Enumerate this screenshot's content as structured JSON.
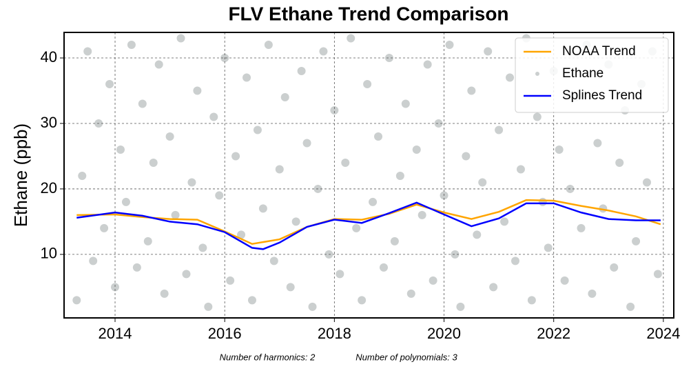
{
  "chart_data": {
    "type": "scatter",
    "title": "FLV Ethane Trend Comparison",
    "ylabel": "Ethane (ppb)",
    "notes": [
      "Number of harmonics: 2",
      "Number of polynomials: 3"
    ],
    "xlim": [
      2013.07,
      2024.19
    ],
    "xticks": [
      2014,
      2016,
      2018,
      2020,
      2022,
      2024
    ],
    "ylim": [
      0.3,
      43.9
    ],
    "yticks": [
      10,
      20,
      30,
      40
    ],
    "grid": true,
    "legend": "upper right",
    "series": [
      {
        "name": "NOAA Trend",
        "kind": "line",
        "color": "#ffa500",
        "x": [
          2013.3,
          2014,
          2014.5,
          2015,
          2015.5,
          2016,
          2016.5,
          2017,
          2017.5,
          2018,
          2018.5,
          2019,
          2019.5,
          2020,
          2020.5,
          2021,
          2021.5,
          2022,
          2022.5,
          2023,
          2023.5,
          2023.95
        ],
        "values": [
          16.0,
          16.1,
          15.7,
          15.4,
          15.3,
          13.5,
          11.6,
          12.3,
          14.2,
          15.4,
          15.3,
          16.2,
          17.6,
          16.4,
          15.4,
          16.5,
          18.3,
          18.2,
          17.4,
          16.7,
          15.8,
          14.6
        ]
      },
      {
        "name": "Ethane",
        "kind": "scatter",
        "color": "#cbcfcf",
        "x": [
          2013.3,
          2013.4,
          2013.5,
          2013.6,
          2013.7,
          2013.8,
          2013.9,
          2014.0,
          2014.1,
          2014.2,
          2014.3,
          2014.4,
          2014.5,
          2014.6,
          2014.7,
          2014.8,
          2014.9,
          2015.0,
          2015.1,
          2015.2,
          2015.3,
          2015.4,
          2015.5,
          2015.6,
          2015.7,
          2015.8,
          2015.9,
          2016.0,
          2016.1,
          2016.2,
          2016.3,
          2016.4,
          2016.5,
          2016.6,
          2016.7,
          2016.8,
          2016.9,
          2017.0,
          2017.1,
          2017.2,
          2017.3,
          2017.4,
          2017.5,
          2017.6,
          2017.7,
          2017.8,
          2017.9,
          2018.0,
          2018.1,
          2018.2,
          2018.3,
          2018.4,
          2018.5,
          2018.6,
          2018.7,
          2018.8,
          2018.9,
          2019.0,
          2019.1,
          2019.2,
          2019.3,
          2019.4,
          2019.5,
          2019.6,
          2019.7,
          2019.8,
          2019.9,
          2020.0,
          2020.1,
          2020.2,
          2020.3,
          2020.4,
          2020.5,
          2020.6,
          2020.7,
          2020.8,
          2020.9,
          2021.0,
          2021.1,
          2021.2,
          2021.3,
          2021.4,
          2021.5,
          2021.6,
          2021.7,
          2021.8,
          2021.9,
          2022.0,
          2022.1,
          2022.2,
          2022.3,
          2022.4,
          2022.5,
          2022.6,
          2022.7,
          2022.8,
          2022.9,
          2023.0,
          2023.1,
          2023.2,
          2023.3,
          2023.4,
          2023.5,
          2023.6,
          2023.7,
          2023.8,
          2023.9
        ],
        "values": [
          3,
          22,
          41,
          9,
          30,
          14,
          36,
          5,
          26,
          18,
          42,
          8,
          33,
          12,
          24,
          39,
          4,
          28,
          16,
          43,
          7,
          21,
          35,
          11,
          2,
          31,
          19,
          40,
          6,
          25,
          13,
          37,
          3,
          29,
          17,
          42,
          9,
          23,
          34,
          5,
          15,
          38,
          27,
          2,
          20,
          41,
          10,
          32,
          7,
          24,
          43,
          14,
          3,
          36,
          18,
          28,
          8,
          40,
          12,
          22,
          33,
          4,
          26,
          16,
          39,
          6,
          30,
          19,
          42,
          10,
          2,
          25,
          35,
          13,
          21,
          41,
          5,
          29,
          15,
          37,
          9,
          23,
          43,
          3,
          31,
          18,
          11,
          38,
          26,
          6,
          20,
          34,
          14,
          42,
          4,
          27,
          17,
          39,
          8,
          24,
          32,
          2,
          12,
          36,
          21,
          41,
          7
        ]
      },
      {
        "name": "Splines Trend",
        "kind": "line",
        "color": "#0000ff",
        "x": [
          2013.3,
          2014,
          2014.5,
          2015,
          2015.5,
          2016,
          2016.5,
          2016.7,
          2017,
          2017.5,
          2018,
          2018.5,
          2019,
          2019.5,
          2020,
          2020.5,
          2021,
          2021.5,
          2022,
          2022.5,
          2023,
          2023.5,
          2023.95
        ],
        "values": [
          15.6,
          16.4,
          15.9,
          15.0,
          14.6,
          13.4,
          11.0,
          10.8,
          11.8,
          14.2,
          15.3,
          14.8,
          16.3,
          17.9,
          16.1,
          14.3,
          15.5,
          17.8,
          17.8,
          16.4,
          15.4,
          15.2,
          15.2
        ]
      }
    ]
  }
}
